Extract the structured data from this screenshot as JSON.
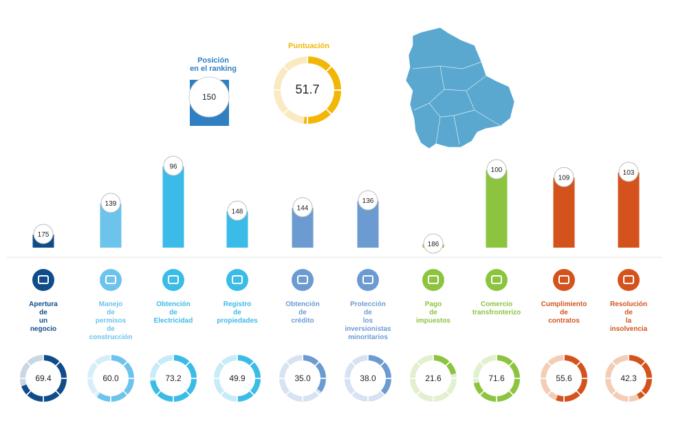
{
  "header": {
    "ranking_title_line1": "Posición",
    "ranking_title_line2": "en el ranking",
    "ranking_value": "150",
    "score_title": "Puntuación",
    "score_value": "51.7",
    "score_fraction": 0.517
  },
  "colors": {
    "navy": "#0f4c8a",
    "light_blue": "#6cc3ec",
    "cyan": "#3bbbe8",
    "steel": "#6c9bd2",
    "green": "#8cc43f",
    "orange": "#d4531d",
    "yellow": "#f2b705",
    "ranking_blue": "#2f7fc2",
    "map": "#5aa8d0"
  },
  "chart_data": {
    "type": "bar",
    "title": "",
    "xlabel": "",
    "ylabel": "",
    "ylim": [
      0,
      190
    ],
    "categories": [
      {
        "lines": [
          "Apertura",
          "de",
          "un",
          "negocio"
        ],
        "rank": 175,
        "score": "69.4",
        "color": "#0f4c8a",
        "light": "#c9d6e6",
        "icon": "business-icon"
      },
      {
        "lines": [
          "Manejo",
          "de",
          "permisos",
          "de",
          "construcción"
        ],
        "rank": 139,
        "score": "60.0",
        "color": "#6cc3ec",
        "light": "#d6eef9",
        "icon": "tools-icon"
      },
      {
        "lines": [
          "Obtención",
          "de",
          "Electricidad"
        ],
        "rank": 96,
        "score": "73.2",
        "color": "#3bbbe8",
        "light": "#c8ebf8",
        "icon": "lightning-icon"
      },
      {
        "lines": [
          "Registro",
          "de",
          "propiedades"
        ],
        "rank": 148,
        "score": "49.9",
        "color": "#3bbbe8",
        "light": "#c8ebf8",
        "icon": "building-icon"
      },
      {
        "lines": [
          "Obtención",
          "de",
          "crédito"
        ],
        "rank": 144,
        "score": "35.0",
        "color": "#6c9bd2",
        "light": "#d7e3f2",
        "icon": "credit-card-icon"
      },
      {
        "lines": [
          "Protección",
          "de",
          "los",
          "inversionistas",
          "minoritarios"
        ],
        "rank": 136,
        "score": "38.0",
        "color": "#6c9bd2",
        "light": "#d7e3f2",
        "icon": "trend-icon"
      },
      {
        "lines": [
          "Pago",
          "de",
          "impuestos"
        ],
        "rank": 186,
        "score": "21.6",
        "color": "#8cc43f",
        "light": "#e2f0d0",
        "icon": "money-icon"
      },
      {
        "lines": [
          "Comercio",
          "transfronterizo"
        ],
        "rank": 100,
        "score": "71.6",
        "color": "#8cc43f",
        "light": "#e2f0d0",
        "icon": "truck-icon"
      },
      {
        "lines": [
          "Cumplimiento",
          "de",
          "contratos"
        ],
        "rank": 109,
        "score": "55.6",
        "color": "#d4531d",
        "light": "#f3cdb6",
        "icon": "courthouse-icon"
      },
      {
        "lines": [
          "Resolución",
          "de",
          "la",
          "insolvencia"
        ],
        "rank": 103,
        "score": "42.3",
        "color": "#d4531d",
        "light": "#f3cdb6",
        "icon": "gavel-icon"
      }
    ]
  }
}
